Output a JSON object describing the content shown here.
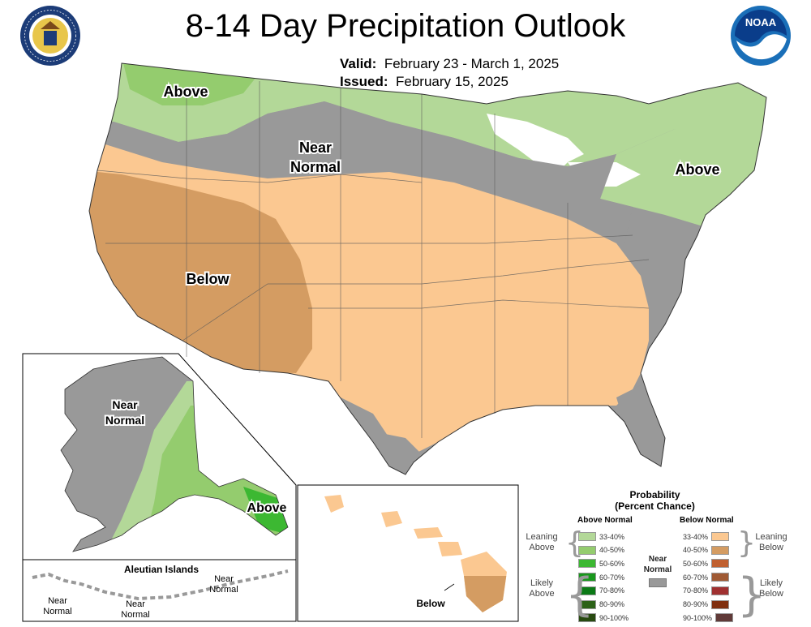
{
  "title": "8-14 Day Precipitation Outlook",
  "valid_label": "Valid:",
  "valid_dates": "February 23 - March 1, 2025",
  "issued_label": "Issued:",
  "issued_date": "February 15, 2025",
  "logos": {
    "left": "doc-seal-icon",
    "right": "noaa-logo-icon",
    "left_text": "DEPARTMENT OF COMMERCE · UNITED STATES OF AMERICA",
    "right_text": "NOAA"
  },
  "regions": {
    "above_nw": "Above",
    "near_normal_north": [
      "Near",
      "Normal"
    ],
    "above_ne": "Above",
    "below_sw": "Below",
    "ak_near_normal": [
      "Near",
      "Normal"
    ],
    "ak_above": "Above",
    "aleutians_title": "Aleutian Islands",
    "aleut_near_1": [
      "Near",
      "Normal"
    ],
    "aleut_near_2": [
      "Near",
      "Normal"
    ],
    "aleut_near_3": [
      "Near",
      "Normal"
    ],
    "hawaii_below": "Below"
  },
  "legend": {
    "title_line1": "Probability",
    "title_line2": "(Percent Chance)",
    "above_header": "Above Normal",
    "below_header": "Below Normal",
    "near_label": [
      "Near",
      "Normal"
    ],
    "near_color": "#999999",
    "leaning_above": [
      "Leaning",
      "Above"
    ],
    "likely_above": [
      "Likely",
      "Above"
    ],
    "leaning_below": [
      "Leaning",
      "Below"
    ],
    "likely_below": [
      "Likely",
      "Below"
    ],
    "above": [
      {
        "range": "33-40%",
        "color": "#b3d898"
      },
      {
        "range": "40-50%",
        "color": "#94cc6e"
      },
      {
        "range": "50-60%",
        "color": "#3cb832"
      },
      {
        "range": "60-70%",
        "color": "#18981c"
      },
      {
        "range": "70-80%",
        "color": "#0b7a16"
      },
      {
        "range": "80-90%",
        "color": "#2c6218"
      },
      {
        "range": "90-100%",
        "color": "#284a10"
      }
    ],
    "below": [
      {
        "range": "33-40%",
        "color": "#fbc891"
      },
      {
        "range": "40-50%",
        "color": "#d49c62"
      },
      {
        "range": "50-60%",
        "color": "#c06030"
      },
      {
        "range": "60-70%",
        "color": "#a05a34"
      },
      {
        "range": "70-80%",
        "color": "#a03030"
      },
      {
        "range": "80-90%",
        "color": "#803010"
      },
      {
        "range": "90-100%",
        "color": "#603a38"
      }
    ]
  },
  "colors": {
    "near": "#999999",
    "above_lean": "#b3d898",
    "above_40": "#94cc6e",
    "below_lean": "#fbc891",
    "below_40": "#d49c62",
    "above_high": "#3cb832"
  }
}
